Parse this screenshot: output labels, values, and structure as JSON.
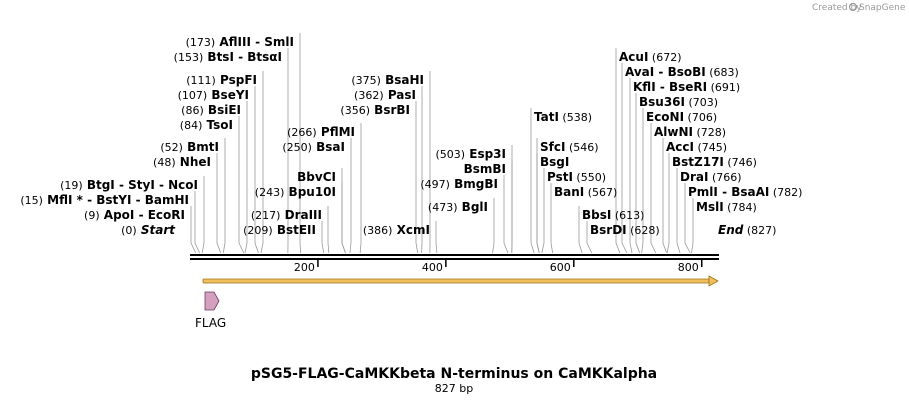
{
  "credit": {
    "text": "Created by",
    "brand": "SnapGene"
  },
  "title": "pSG5-FLAG-CaMKKbeta N-terminus on CaMKKalpha",
  "length_label": "827 bp",
  "sequence_length": 827,
  "ruler_ticks": [
    "200",
    "400",
    "600",
    "800"
  ],
  "feature": {
    "label": "FLAG",
    "start": 17,
    "end": 42,
    "color": "#d4a0c0"
  },
  "colors": {
    "backbone": "#000000",
    "orf": "#f0c060",
    "orf_edge": "#a07010",
    "leader": "#999999"
  },
  "left_sites": [
    {
      "pos": "(0)",
      "names": [
        "Start"
      ],
      "at": 0,
      "italic": true
    },
    {
      "pos": "(9)",
      "names": [
        "ApoI",
        "EcoRI"
      ],
      "at": 9
    },
    {
      "pos": "(15)",
      "names": [
        "MflI *",
        "BstYI",
        "BamHI"
      ],
      "at": 15
    },
    {
      "pos": "(19)",
      "names": [
        "BtgI",
        "StyI",
        "NcoI"
      ],
      "at": 19
    },
    {
      "pos": "(48)",
      "names": [
        "NheI"
      ],
      "at": 48
    },
    {
      "pos": "(52)",
      "names": [
        "BmtI"
      ],
      "at": 52
    },
    {
      "pos": "(84)",
      "names": [
        "TsoI"
      ],
      "at": 84
    },
    {
      "pos": "(86)",
      "names": [
        "BsiEI"
      ],
      "at": 86
    },
    {
      "pos": "(107)",
      "names": [
        "BseYI"
      ],
      "at": 107
    },
    {
      "pos": "(111)",
      "names": [
        "PspFI"
      ],
      "at": 111
    },
    {
      "pos": "(153)",
      "names": [
        "BtsI",
        "BtsαI"
      ],
      "at": 153
    },
    {
      "pos": "(173)",
      "names": [
        "AflIII",
        "SmlI"
      ],
      "at": 173
    }
  ],
  "mid_sites": [
    {
      "pos": "(209)",
      "names": [
        "BstEII"
      ],
      "at": 209
    },
    {
      "pos": "(217)",
      "names": [
        "DraIII"
      ],
      "at": 217
    },
    {
      "pos": "(243)",
      "names": [
        "Bpu10I"
      ],
      "at": 243
    },
    {
      "pos": "",
      "names": [
        "BbvCI"
      ],
      "at": 243
    },
    {
      "pos": "(250)",
      "names": [
        "BsaI"
      ],
      "at": 250
    },
    {
      "pos": "(266)",
      "names": [
        "PflMI"
      ],
      "at": 266
    },
    {
      "pos": "(356)",
      "names": [
        "BsrBI"
      ],
      "at": 356
    },
    {
      "pos": "(362)",
      "names": [
        "PasI"
      ],
      "at": 362
    },
    {
      "pos": "(375)",
      "names": [
        "BsaHI"
      ],
      "at": 375
    },
    {
      "pos": "(386)",
      "names": [
        "XcmI"
      ],
      "at": 386
    },
    {
      "pos": "(473)",
      "names": [
        "BglI"
      ],
      "at": 473
    },
    {
      "pos": "(497)",
      "names": [
        "BmgBI"
      ],
      "at": 497
    },
    {
      "pos": "",
      "names": [
        "BsmBI"
      ],
      "at": 503
    },
    {
      "pos": "(503)",
      "names": [
        "Esp3I"
      ],
      "at": 503
    }
  ],
  "right_sites": [
    {
      "pos": "(538)",
      "names": [
        "TatI"
      ],
      "at": 538
    },
    {
      "pos": "(546)",
      "names": [
        "SfcI"
      ],
      "at": 546
    },
    {
      "pos": "",
      "names": [
        "BsgI"
      ],
      "at": 546
    },
    {
      "pos": "(550)",
      "names": [
        "PstI"
      ],
      "at": 550
    },
    {
      "pos": "(567)",
      "names": [
        "BanI"
      ],
      "at": 567
    },
    {
      "pos": "(613)",
      "names": [
        "BbsI"
      ],
      "at": 613
    },
    {
      "pos": "(628)",
      "names": [
        "BsrDI"
      ],
      "at": 628
    },
    {
      "pos": "(672)",
      "names": [
        "AcuI"
      ],
      "at": 672
    },
    {
      "pos": "(683)",
      "names": [
        "AvaI",
        "BsoBI"
      ],
      "at": 683
    },
    {
      "pos": "(691)",
      "names": [
        "KflI",
        "BseRI"
      ],
      "at": 691
    },
    {
      "pos": "(703)",
      "names": [
        "Bsu36I"
      ],
      "at": 703
    },
    {
      "pos": "(706)",
      "names": [
        "EcoNI"
      ],
      "at": 706
    },
    {
      "pos": "(728)",
      "names": [
        "AlwNI"
      ],
      "at": 728
    },
    {
      "pos": "(745)",
      "names": [
        "AccI"
      ],
      "at": 745
    },
    {
      "pos": "(746)",
      "names": [
        "BstZ17I"
      ],
      "at": 746
    },
    {
      "pos": "(766)",
      "names": [
        "DraI"
      ],
      "at": 766
    },
    {
      "pos": "(782)",
      "names": [
        "PmlI",
        "BsaAI"
      ],
      "at": 782
    },
    {
      "pos": "(784)",
      "names": [
        "MslI"
      ],
      "at": 784
    },
    {
      "pos": "(827)",
      "names": [
        "End"
      ],
      "at": 827,
      "italic": true
    }
  ]
}
